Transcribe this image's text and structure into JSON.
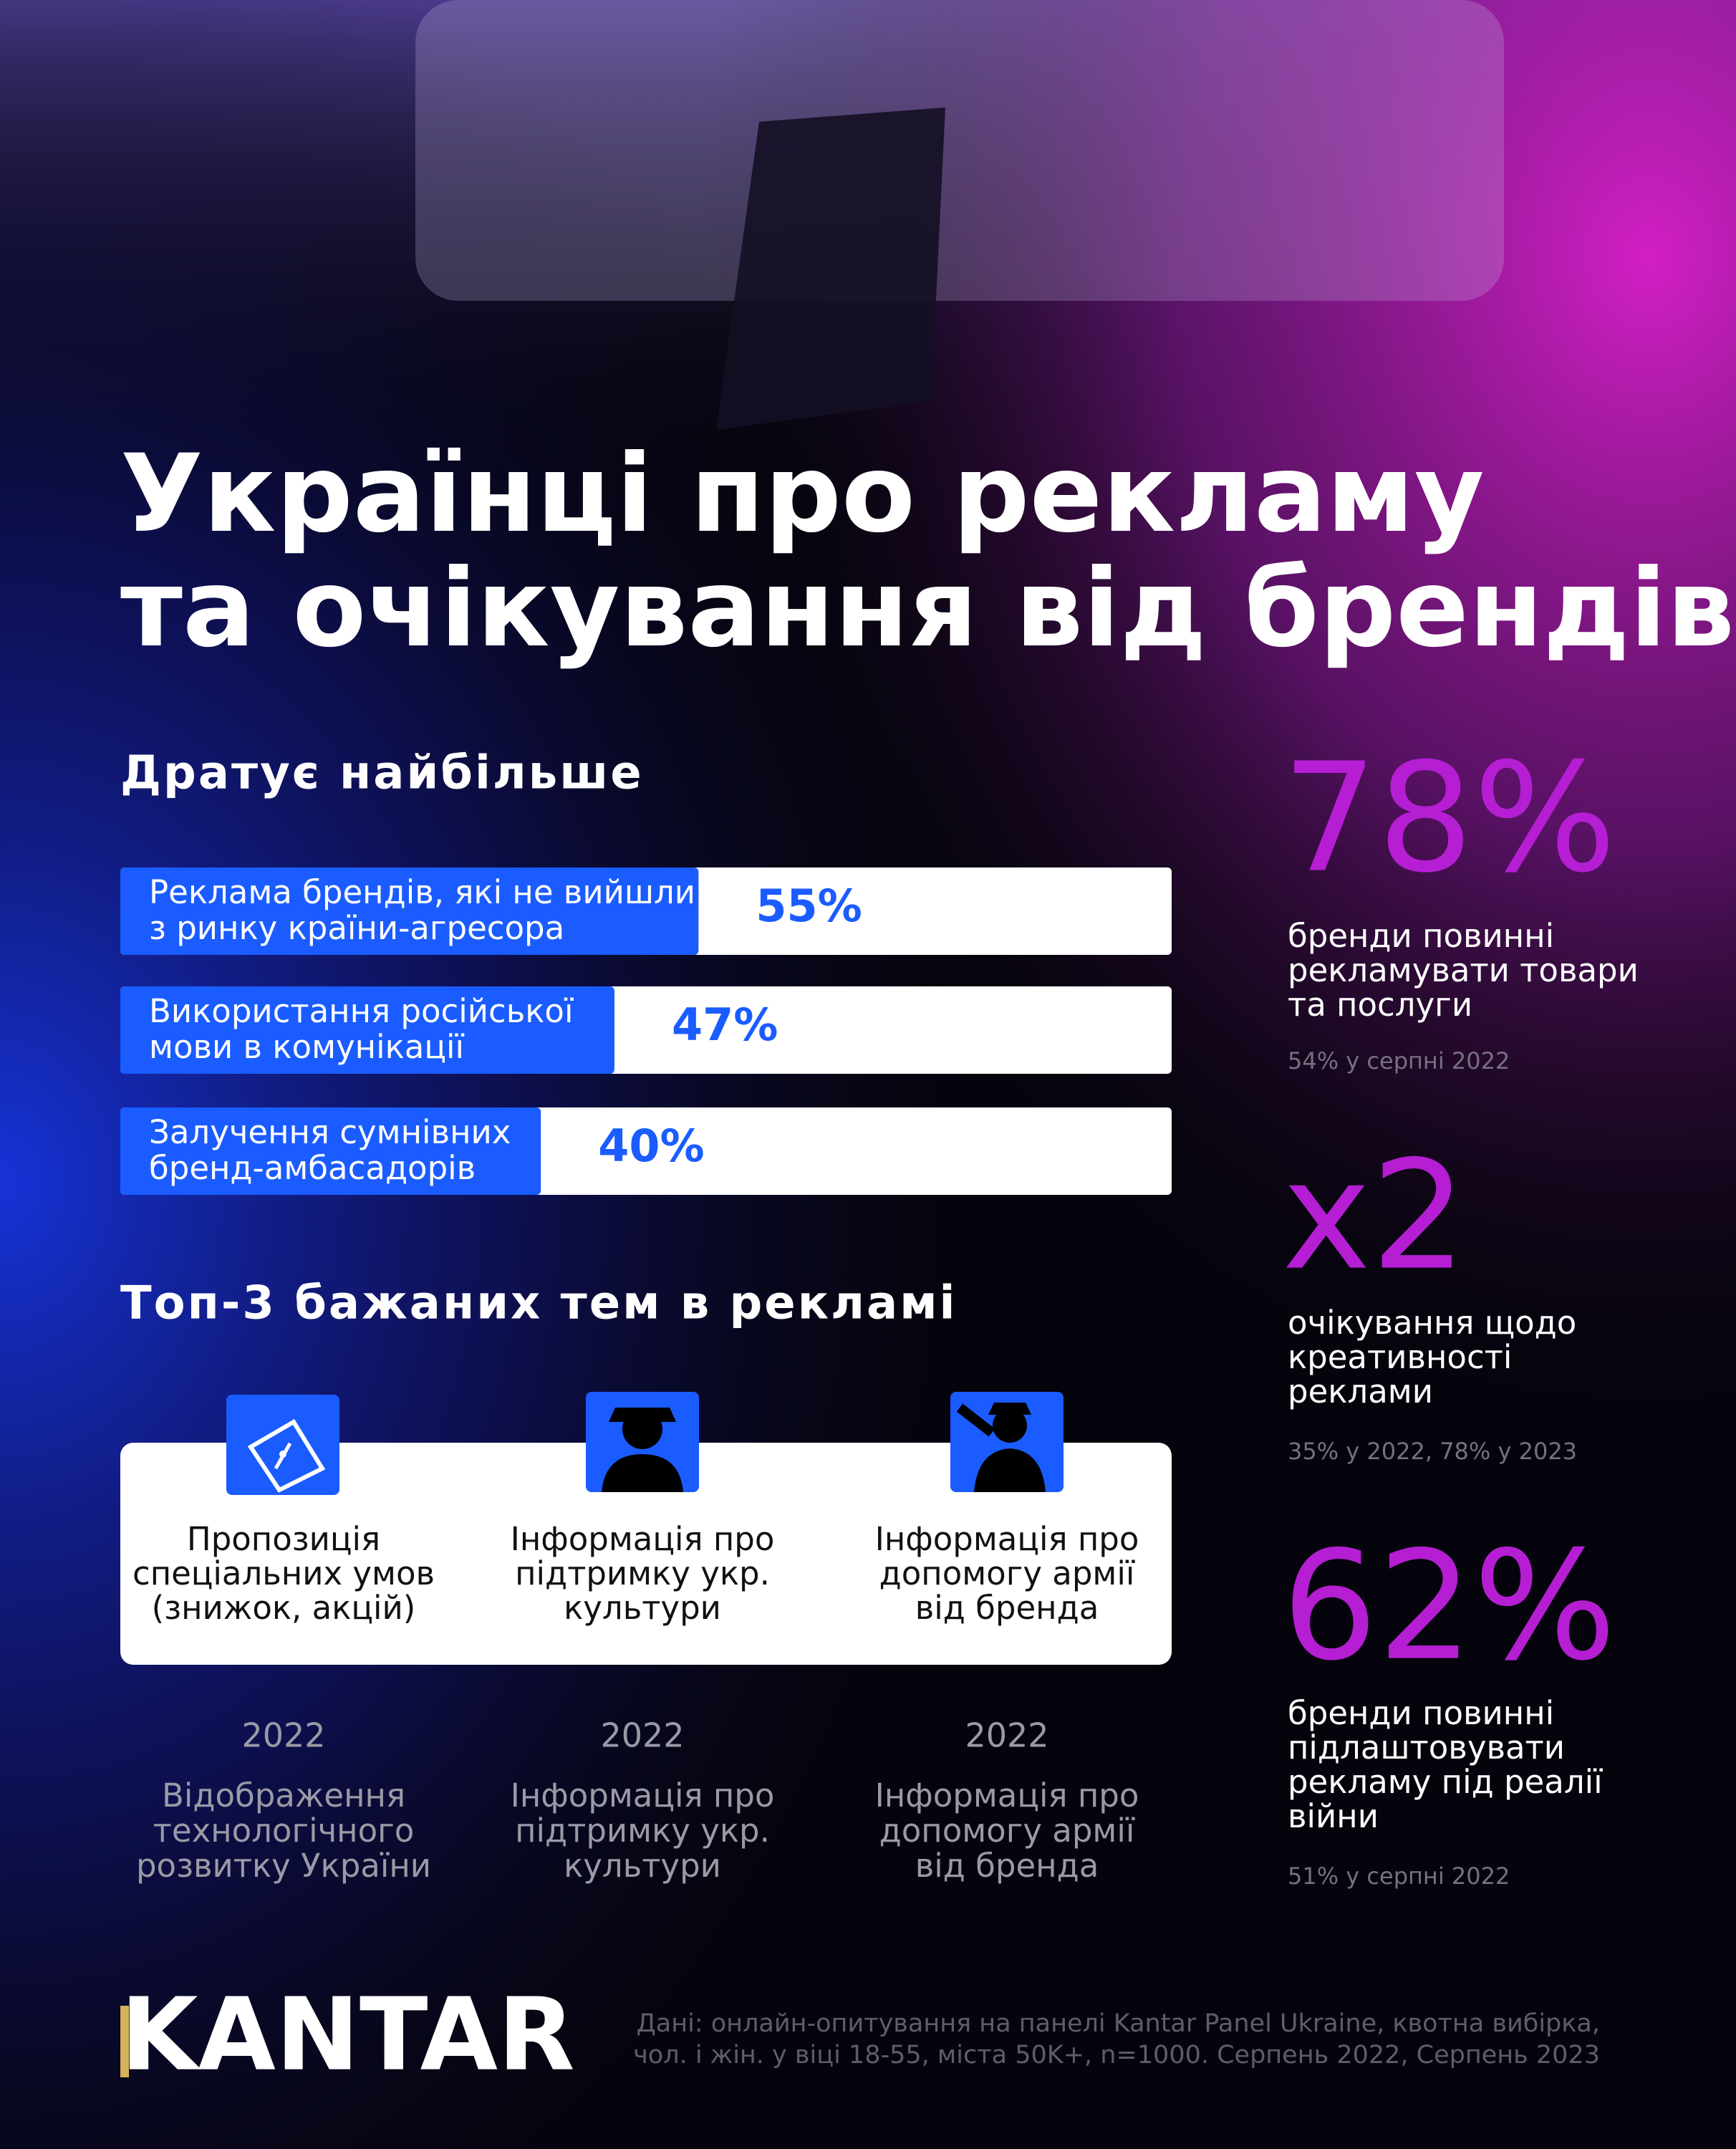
{
  "header": {
    "title": [
      "Українці про рекламу",
      "та очікування від брендів"
    ]
  },
  "chart_data": {
    "type": "bar",
    "orientation": "horizontal",
    "title": "Дратує найбільше",
    "categories": [
      [
        "Реклама брендів, які не вийшли",
        "з ринку країни-агресора"
      ],
      [
        "Використання російської",
        "мови в комунікації"
      ],
      [
        "Залучення сумнівних",
        "бренд-амбасадорів"
      ]
    ],
    "values": [
      55,
      47,
      40
    ],
    "value_labels": [
      "55%",
      "47%",
      "40%"
    ],
    "color": "#1a5cff",
    "xlim": [
      0,
      100
    ]
  },
  "topics": {
    "title": "Топ-3 бажаних тем в рекламі",
    "current": [
      {
        "lines": [
          "Пропозиція",
          "спеціальних умов",
          "(знижок, акцій)"
        ]
      },
      {
        "lines": [
          "Інформація про",
          "підтримку укр.",
          "культури"
        ]
      },
      {
        "lines": [
          "Інформація про",
          "допомогу армії",
          "від бренда"
        ]
      }
    ],
    "previous": [
      {
        "year": "2022",
        "lines": [
          "Відображення",
          "технологічного",
          "розвитку України"
        ]
      },
      {
        "year": "2022",
        "lines": [
          "Інформація про",
          "підтримку укр.",
          "культури"
        ]
      },
      {
        "year": "2022",
        "lines": [
          "Інформація про",
          "допомогу армії",
          "від бренда"
        ]
      }
    ]
  },
  "stats": [
    {
      "value": "78%",
      "lines": [
        "бренди повинні",
        "рекламувати товари",
        "та послуги"
      ],
      "note": "54% у серпні 2022"
    },
    {
      "value": "x2",
      "lines": [
        "очікування щодо",
        "креативності",
        "реклами"
      ],
      "note": "35% у 2022, 78% у 2023"
    },
    {
      "value": "62%",
      "lines": [
        "бренди повинні",
        "підлаштовувати",
        "рекламу під реалії",
        "війни"
      ],
      "note": "51% у серпні 2022"
    }
  ],
  "footer": {
    "logo": "KANTAR",
    "source": [
      "Дані: онлайн-опитування на панелі Kantar Panel Ukraine, квотна вибірка,",
      "чол. і жін. у віці 18-55, міста 50K+, n=1000. Серпень 2022, Серпень 2023"
    ]
  }
}
